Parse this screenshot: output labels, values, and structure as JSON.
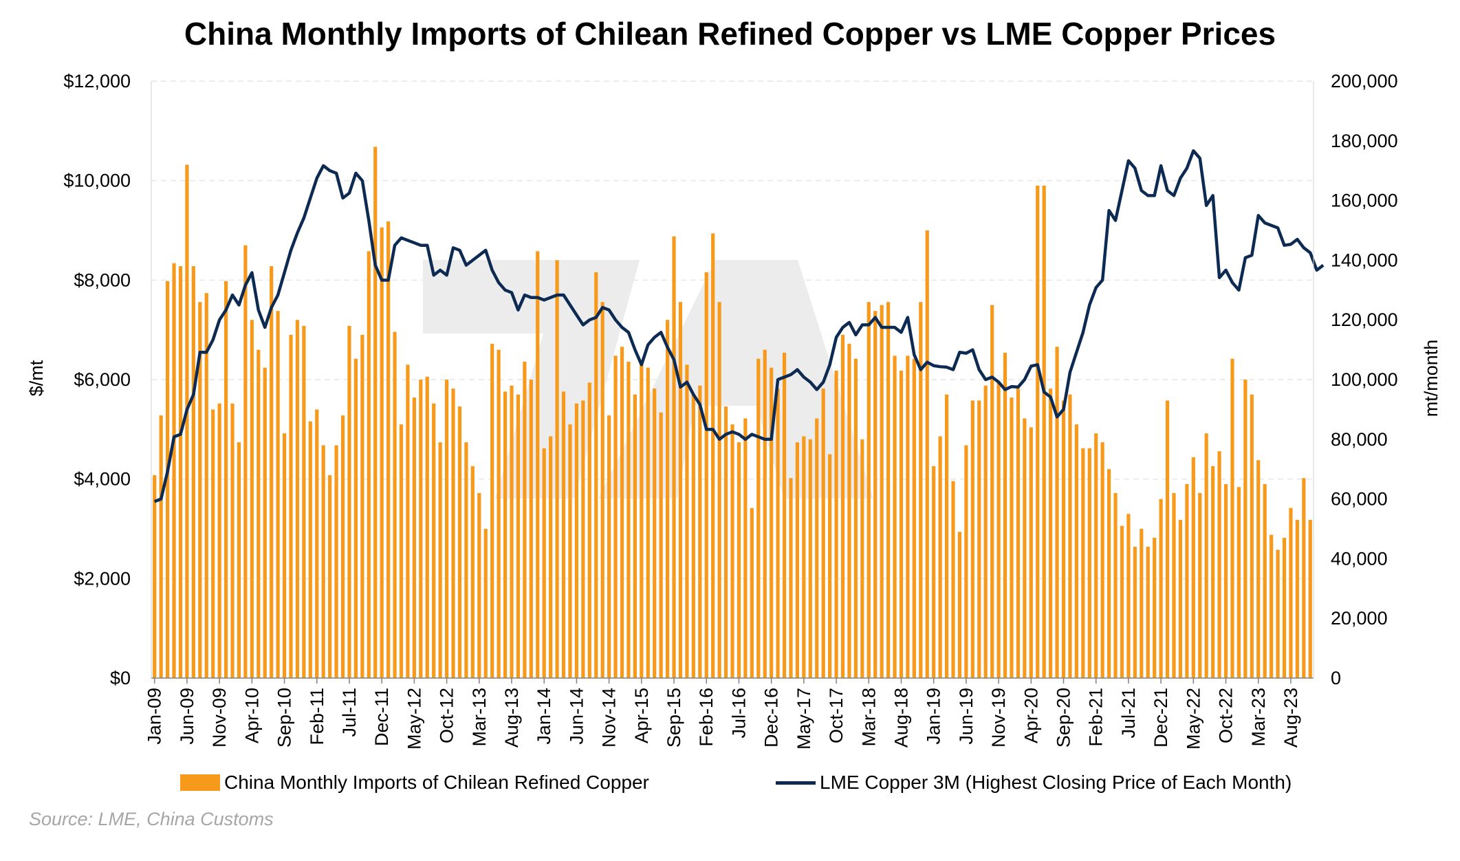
{
  "chart_data": {
    "type": "bar+line",
    "title": "China Monthly Imports of Chilean Refined Copper vs LME Copper Prices",
    "y_left": {
      "label": "$/mt",
      "range": [
        0,
        12000
      ],
      "ticks": [
        "$0",
        "$2,000",
        "$4,000",
        "$6,000",
        "$8,000",
        "$10,000",
        "$12,000"
      ]
    },
    "y_right": {
      "label": "mt/month",
      "range": [
        0,
        200000
      ],
      "ticks": [
        "0",
        "20,000",
        "40,000",
        "60,000",
        "80,000",
        "100,000",
        "120,000",
        "140,000",
        "160,000",
        "180,000",
        "200,000"
      ]
    },
    "x_tick_labels": [
      "Jan-09",
      "Jun-09",
      "Nov-09",
      "Apr-10",
      "Sep-10",
      "Feb-11",
      "Jul-11",
      "Dec-11",
      "May-12",
      "Oct-12",
      "Mar-13",
      "Aug-13",
      "Jan-14",
      "Jun-14",
      "Nov-14",
      "Apr-15",
      "Sep-15",
      "Feb-16",
      "Jul-16",
      "Dec-16",
      "May-17",
      "Oct-17",
      "Mar-18",
      "Aug-18",
      "Jan-19",
      "Jun-19",
      "Nov-19",
      "Apr-20",
      "Sep-20",
      "Feb-21",
      "Jul-21",
      "Dec-21",
      "May-22",
      "Oct-22",
      "Mar-23",
      "Aug-23"
    ],
    "x_start": "2009-01",
    "grid": true,
    "legend_position": "bottom",
    "series": [
      {
        "name": "China Monthly Imports of Chilean Refined Copper",
        "type": "bar",
        "axis": "right",
        "color": "#f79a1c",
        "values": [
          68000,
          88000,
          133000,
          139000,
          138000,
          172000,
          138000,
          126000,
          129000,
          90000,
          92000,
          133000,
          92000,
          79000,
          145000,
          120000,
          110000,
          104000,
          138000,
          123000,
          82000,
          115000,
          120000,
          118000,
          86000,
          90000,
          78000,
          68000,
          78000,
          88000,
          118000,
          107000,
          115000,
          143000,
          178000,
          151000,
          153000,
          116000,
          85000,
          105000,
          94000,
          100000,
          101000,
          92000,
          79000,
          100000,
          97000,
          91000,
          79000,
          71000,
          62000,
          50000,
          112000,
          110000,
          96000,
          98000,
          95000,
          106000,
          100000,
          143000,
          77000,
          81000,
          140000,
          96000,
          85000,
          92000,
          93000,
          99000,
          136000,
          126000,
          88000,
          108000,
          111000,
          106000,
          95000,
          106000,
          104000,
          97000,
          89000,
          120000,
          148000,
          126000,
          105000,
          95000,
          98000,
          136000,
          149000,
          126000,
          91000,
          85000,
          79000,
          87000,
          57000,
          107000,
          110000,
          104000,
          97000,
          109000,
          67000,
          79000,
          81000,
          80000,
          87000,
          97000,
          75000,
          103000,
          115000,
          112000,
          107000,
          80000,
          126000,
          123000,
          125000,
          126000,
          108000,
          103000,
          108000,
          107000,
          126000,
          150000,
          71000,
          81000,
          95000,
          66000,
          49000,
          78000,
          93000,
          93000,
          98000,
          125000,
          99000,
          109000,
          94000,
          97000,
          87000,
          84000,
          165000,
          165000,
          97000,
          111000,
          93000,
          95000,
          85000,
          77000,
          77000,
          82000,
          79000,
          70000,
          62000,
          51000,
          55000,
          44000,
          50000,
          44000,
          47000,
          60000,
          93000,
          62000,
          53000,
          65000,
          74000,
          62000,
          82000,
          71000,
          76000,
          65000,
          107000,
          64000,
          100000,
          95000,
          73000,
          65000,
          48000,
          43000,
          47000,
          57000,
          53000,
          67000,
          53000
        ]
      },
      {
        "name": "LME Copper 3M (Highest Closing Price of Each Month)",
        "type": "line",
        "axis": "left",
        "color": "#0d2b52",
        "values": [
          3550,
          3600,
          4150,
          4850,
          4900,
          5400,
          5700,
          6550,
          6550,
          6800,
          7200,
          7400,
          7700,
          7500,
          7900,
          8150,
          7400,
          7050,
          7450,
          7700,
          8150,
          8600,
          8950,
          9250,
          9650,
          10050,
          10300,
          10200,
          10150,
          9650,
          9750,
          10150,
          10000,
          9200,
          8300,
          8000,
          8000,
          8700,
          8850,
          8800,
          8750,
          8700,
          8700,
          8100,
          8200,
          8100,
          8650,
          8600,
          8300,
          8400,
          8500,
          8600,
          8200,
          7950,
          7800,
          7750,
          7400,
          7700,
          7650,
          7650,
          7600,
          7650,
          7700,
          7700,
          7500,
          7300,
          7100,
          7200,
          7250,
          7450,
          7400,
          7200,
          7050,
          6950,
          6600,
          6300,
          6700,
          6850,
          6950,
          6650,
          6400,
          5850,
          5950,
          5700,
          5500,
          5000,
          5000,
          4800,
          4900,
          4950,
          4900,
          4800,
          4900,
          4850,
          4800,
          4800,
          6000,
          6050,
          6100,
          6200,
          6050,
          5950,
          5800,
          5950,
          6300,
          6850,
          7050,
          7150,
          6900,
          7100,
          7100,
          7250,
          7050,
          7050,
          7050,
          6950,
          7250,
          6500,
          6200,
          6350,
          6280,
          6260,
          6250,
          6200,
          6550,
          6530,
          6600,
          6200,
          6000,
          6050,
          5950,
          5800,
          5860,
          5850,
          6000,
          6270,
          6300,
          5750,
          5650,
          5250,
          5400,
          6150,
          6550,
          6950,
          7500,
          7850,
          8000,
          9400,
          9200,
          9800,
          10400,
          10250,
          9800,
          9700,
          9700,
          10300,
          9800,
          9700,
          10050,
          10250,
          10600,
          10450,
          9500,
          9700,
          8050,
          8200,
          7950,
          7800,
          8450,
          8500,
          9300,
          9150,
          9100,
          9050,
          8700,
          8720,
          8820,
          8650,
          8550,
          8200,
          8300
        ]
      }
    ]
  },
  "source": "Source: LME, China Customs",
  "colors": {
    "bar": "#f79a1c",
    "line": "#0d2b52",
    "grid": "#e6e6e6",
    "watermark": "#ececec"
  }
}
